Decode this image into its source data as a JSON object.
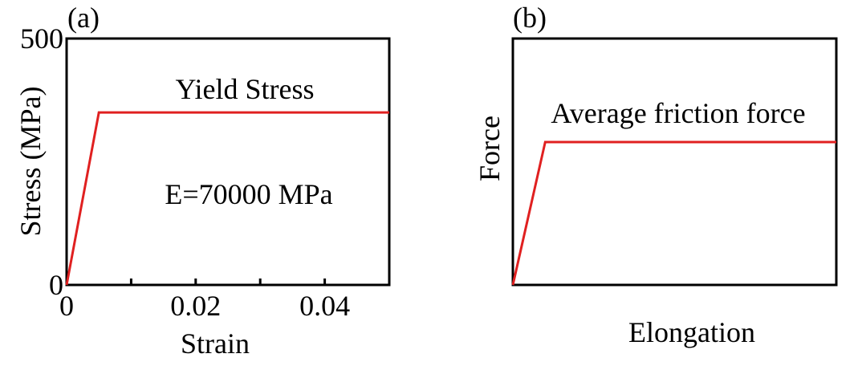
{
  "chart_data": [
    {
      "type": "line",
      "panel_label": "(a)",
      "xlabel": "Strain",
      "ylabel": "Stress (MPa)",
      "xlim": [
        0,
        0.05
      ],
      "ylim": [
        0,
        500
      ],
      "x_tick_labels": [
        "0",
        "0.02",
        "0.04"
      ],
      "y_tick_labels": [
        "0",
        "500"
      ],
      "x_ticks": [
        0,
        0.01,
        0.02,
        0.03,
        0.04
      ],
      "x_tick_label_values": [
        0,
        0.02,
        0.04
      ],
      "y_tick_label_values": [
        0,
        500
      ],
      "annotations": [
        "Yield Stress",
        "E=70000 MPa"
      ],
      "grid": false,
      "series": [
        {
          "x": [
            0,
            0.005,
            0.05
          ],
          "y": [
            0,
            350,
            350
          ],
          "color": "#e02020"
        }
      ]
    },
    {
      "type": "line",
      "panel_label": "(b)",
      "xlabel": "Elongation",
      "ylabel": "Force",
      "xlim": [
        0,
        1
      ],
      "ylim": [
        0,
        1
      ],
      "annotations": [
        "Average friction force"
      ],
      "grid": false,
      "series": [
        {
          "x": [
            0,
            0.1,
            1
          ],
          "y": [
            0,
            0.58,
            0.58
          ],
          "color": "#e02020"
        }
      ]
    }
  ]
}
